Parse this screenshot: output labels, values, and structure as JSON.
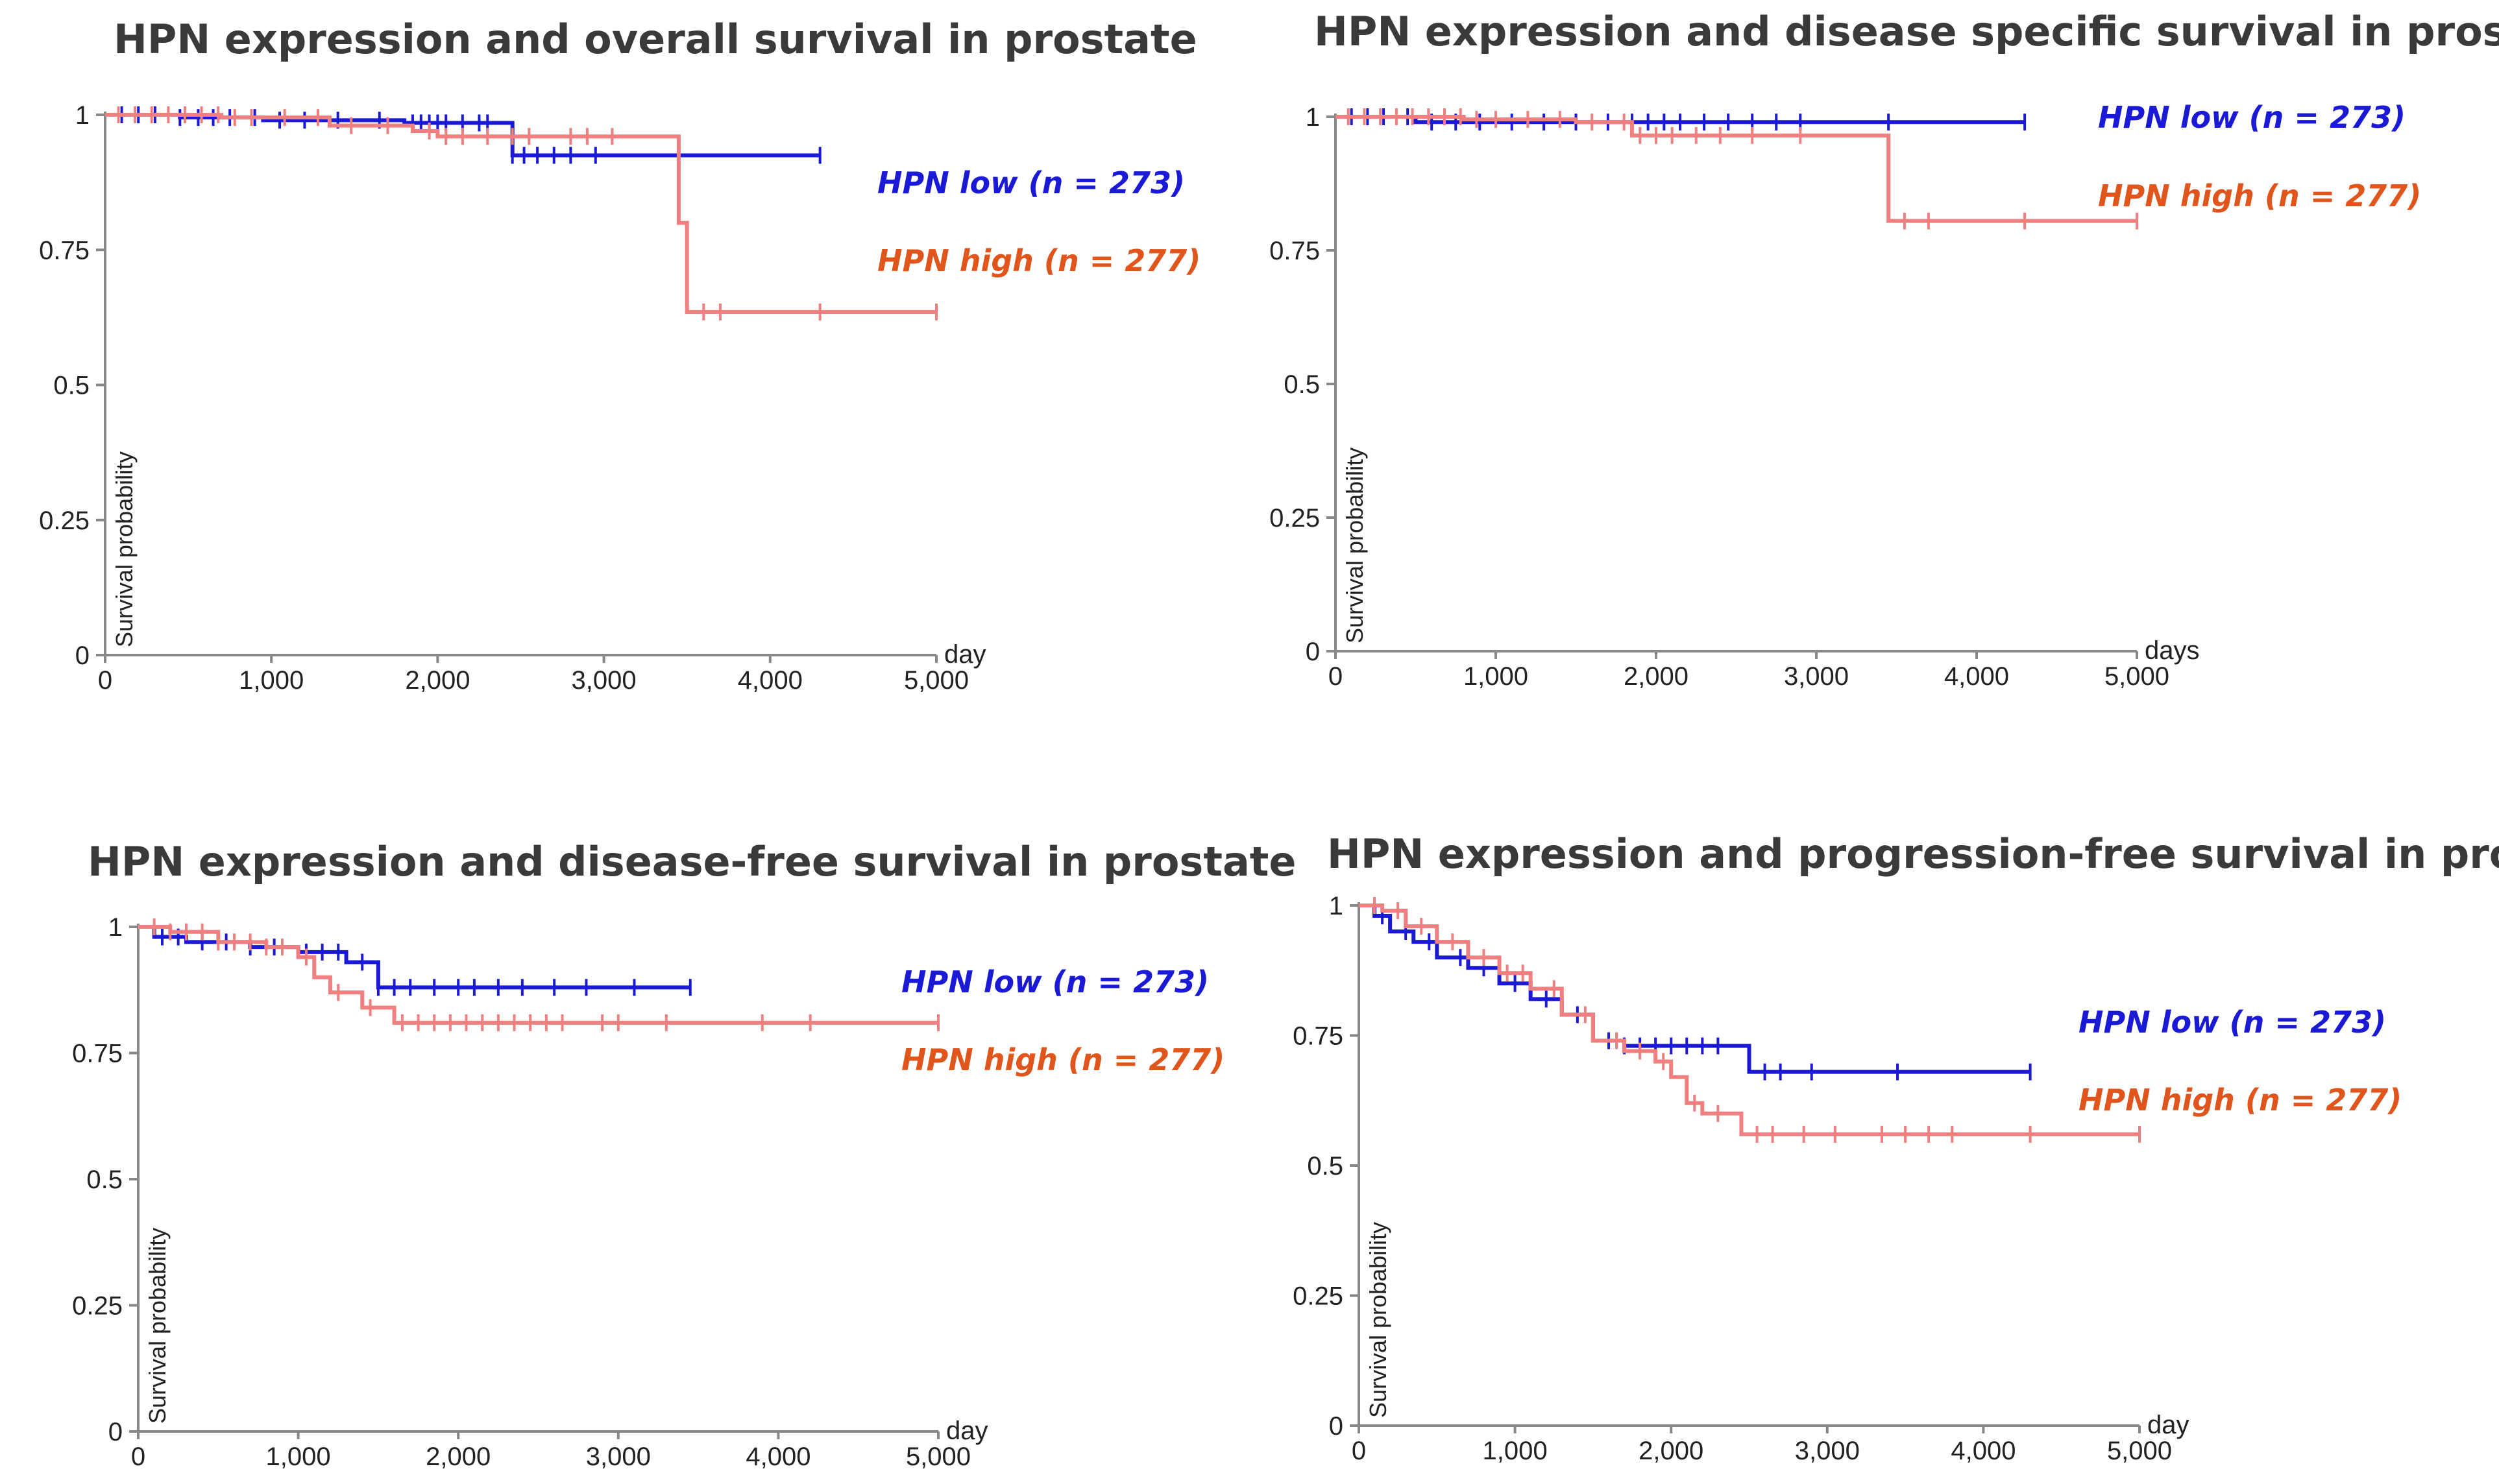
{
  "colors": {
    "low": "#1a1ad6",
    "high": "#f07f7f",
    "high_label": "#e0551b",
    "title": "#3a3a3a"
  },
  "chart_data": [
    {
      "type": "line",
      "subtype": "kaplan-meier",
      "title": "HPN expression and overall survival in prostate",
      "xlabel": "day",
      "ylabel": "Survival probability",
      "xlim": [
        0,
        5000
      ],
      "ylim": [
        0,
        1
      ],
      "x_ticks": [
        "0",
        "1,000",
        "2,000",
        "3,000",
        "4,000",
        "5,000"
      ],
      "y_ticks": [
        "0",
        "0.25",
        "0.5",
        "0.75",
        "1"
      ],
      "series": [
        {
          "name": "HPN low (n = 273)",
          "key": "low",
          "steps": [
            [
              0,
              1
            ],
            [
              450,
              0.995
            ],
            [
              950,
              0.99
            ],
            [
              1800,
              0.985
            ],
            [
              2450,
              0.925
            ],
            [
              4300,
              0.925
            ]
          ],
          "censored": [
            100,
            200,
            300,
            450,
            560,
            650,
            750,
            900,
            1050,
            1200,
            1400,
            1650,
            1850,
            1900,
            1950,
            2000,
            2050,
            2150,
            2250,
            2300,
            2450,
            2520,
            2600,
            2700,
            2800,
            2950,
            4300
          ]
        },
        {
          "name": "HPN high (n = 277)",
          "key": "high",
          "steps": [
            [
              0,
              1
            ],
            [
              700,
              0.995
            ],
            [
              1350,
              0.98
            ],
            [
              1850,
              0.97
            ],
            [
              2000,
              0.96
            ],
            [
              3450,
              0.8
            ],
            [
              3500,
              0.635
            ],
            [
              5000,
              0.635
            ]
          ],
          "censored": [
            80,
            180,
            280,
            380,
            480,
            580,
            680,
            780,
            880,
            1080,
            1280,
            1480,
            1700,
            1950,
            2050,
            2150,
            2300,
            2450,
            2550,
            2800,
            2900,
            3050,
            3600,
            3700,
            4300,
            5000
          ]
        }
      ]
    },
    {
      "type": "line",
      "subtype": "kaplan-meier",
      "title": "HPN expression and disease specific survival in prostate",
      "xlabel": "days",
      "ylabel": "Survival probability",
      "xlim": [
        0,
        5000
      ],
      "ylim": [
        0,
        1
      ],
      "x_ticks": [
        "0",
        "1,000",
        "2,000",
        "3,000",
        "4,000",
        "5,000"
      ],
      "y_ticks": [
        "0",
        "0.25",
        "0.5",
        "0.75",
        "1"
      ],
      "series": [
        {
          "name": "HPN low (n = 273)",
          "key": "low",
          "steps": [
            [
              0,
              1
            ],
            [
              500,
              0.99
            ],
            [
              4300,
              0.99
            ]
          ],
          "censored": [
            100,
            200,
            300,
            450,
            600,
            750,
            900,
            1100,
            1300,
            1500,
            1700,
            1850,
            1950,
            2050,
            2150,
            2300,
            2450,
            2600,
            2750,
            2900,
            3450,
            4300
          ]
        },
        {
          "name": "HPN high (n = 277)",
          "key": "high",
          "steps": [
            [
              0,
              1
            ],
            [
              800,
              0.995
            ],
            [
              1500,
              0.99
            ],
            [
              1850,
              0.965
            ],
            [
              3450,
              0.805
            ],
            [
              5000,
              0.805
            ]
          ],
          "censored": [
            80,
            180,
            280,
            380,
            480,
            580,
            680,
            780,
            880,
            1000,
            1200,
            1400,
            1600,
            1800,
            1900,
            2000,
            2100,
            2250,
            2400,
            2600,
            2900,
            3550,
            3700,
            4300,
            5000
          ]
        }
      ]
    },
    {
      "type": "line",
      "subtype": "kaplan-meier",
      "title": "HPN expression and disease-free survival in prostate",
      "xlabel": "day",
      "ylabel": "Survival probability",
      "xlim": [
        0,
        5000
      ],
      "ylim": [
        0,
        1
      ],
      "x_ticks": [
        "0",
        "1,000",
        "2,000",
        "3,000",
        "4,000",
        "5,000"
      ],
      "y_ticks": [
        "0",
        "0.25",
        "0.5",
        "0.75",
        "1"
      ],
      "series": [
        {
          "name": "HPN low (n = 273)",
          "key": "low",
          "steps": [
            [
              0,
              1
            ],
            [
              100,
              0.98
            ],
            [
              300,
              0.97
            ],
            [
              700,
              0.96
            ],
            [
              1000,
              0.95
            ],
            [
              1300,
              0.93
            ],
            [
              1500,
              0.88
            ],
            [
              3450,
              0.88
            ]
          ],
          "censored": [
            150,
            250,
            400,
            550,
            700,
            850,
            1050,
            1150,
            1250,
            1400,
            1500,
            1600,
            1700,
            1850,
            2000,
            2100,
            2250,
            2400,
            2600,
            2800,
            3100,
            3450
          ]
        },
        {
          "name": "HPN high (n = 277)",
          "key": "high",
          "steps": [
            [
              0,
              1
            ],
            [
              200,
              0.99
            ],
            [
              500,
              0.97
            ],
            [
              800,
              0.96
            ],
            [
              1000,
              0.94
            ],
            [
              1100,
              0.9
            ],
            [
              1200,
              0.87
            ],
            [
              1400,
              0.84
            ],
            [
              1600,
              0.81
            ],
            [
              5000,
              0.81
            ]
          ],
          "censored": [
            100,
            200,
            300,
            400,
            500,
            600,
            700,
            800,
            900,
            1050,
            1250,
            1450,
            1650,
            1750,
            1850,
            1950,
            2050,
            2150,
            2250,
            2350,
            2450,
            2550,
            2650,
            2900,
            3000,
            3300,
            3900,
            4200,
            5000
          ]
        }
      ]
    },
    {
      "type": "line",
      "subtype": "kaplan-meier",
      "title": "HPN expression and progression-free survival in prostate",
      "xlabel": "day",
      "ylabel": "Survival probability",
      "xlim": [
        0,
        5000
      ],
      "ylim": [
        0,
        1
      ],
      "x_ticks": [
        "0",
        "1,000",
        "2,000",
        "3,000",
        "4,000",
        "5,000"
      ],
      "y_ticks": [
        "0",
        "0.25",
        "0.5",
        "0.75",
        "1"
      ],
      "series": [
        {
          "name": "HPN low (n = 273)",
          "key": "low",
          "steps": [
            [
              0,
              1
            ],
            [
              100,
              0.98
            ],
            [
              200,
              0.95
            ],
            [
              350,
              0.93
            ],
            [
              500,
              0.9
            ],
            [
              700,
              0.88
            ],
            [
              900,
              0.85
            ],
            [
              1100,
              0.82
            ],
            [
              1300,
              0.79
            ],
            [
              1500,
              0.74
            ],
            [
              1700,
              0.73
            ],
            [
              2500,
              0.68
            ],
            [
              4300,
              0.68
            ]
          ],
          "censored": [
            150,
            300,
            450,
            650,
            800,
            1000,
            1200,
            1400,
            1600,
            1700,
            1800,
            1900,
            2000,
            2100,
            2200,
            2300,
            2600,
            2700,
            2900,
            3450,
            4300
          ]
        },
        {
          "name": "HPN high (n = 277)",
          "key": "high",
          "steps": [
            [
              0,
              1
            ],
            [
              150,
              0.99
            ],
            [
              300,
              0.96
            ],
            [
              500,
              0.93
            ],
            [
              700,
              0.9
            ],
            [
              900,
              0.87
            ],
            [
              1100,
              0.84
            ],
            [
              1300,
              0.79
            ],
            [
              1500,
              0.74
            ],
            [
              1700,
              0.72
            ],
            [
              1900,
              0.7
            ],
            [
              2000,
              0.67
            ],
            [
              2100,
              0.62
            ],
            [
              2200,
              0.6
            ],
            [
              2450,
              0.56
            ],
            [
              5000,
              0.56
            ]
          ],
          "censored": [
            100,
            250,
            400,
            600,
            800,
            950,
            1050,
            1250,
            1450,
            1650,
            1800,
            1950,
            2150,
            2300,
            2550,
            2650,
            2850,
            3050,
            3350,
            3500,
            3650,
            3800,
            4300,
            5000
          ]
        }
      ]
    }
  ]
}
